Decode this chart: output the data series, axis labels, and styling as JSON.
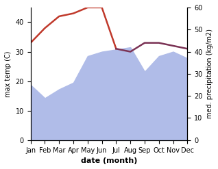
{
  "months": [
    "Jan",
    "Feb",
    "Mar",
    "Apr",
    "May",
    "Jun",
    "Jul",
    "Aug",
    "Sep",
    "Oct",
    "Nov",
    "Dec"
  ],
  "temperature_red": [
    33,
    38,
    42,
    43,
    45,
    45,
    31
  ],
  "temperature_dark": [
    31,
    30,
    33,
    33,
    32,
    31
  ],
  "precipitation": [
    25,
    19,
    23,
    26,
    38,
    40,
    41,
    42,
    31,
    38,
    40,
    37
  ],
  "temp_color_red": "#c0392b",
  "temp_color_dark": "#7b3355",
  "precip_color_fill": "#b0bce8",
  "temp_ylim": [
    0,
    45
  ],
  "precip_ylim": [
    0,
    60
  ],
  "temp_yticks": [
    0,
    10,
    20,
    30,
    40
  ],
  "precip_yticks": [
    0,
    10,
    20,
    30,
    40,
    50,
    60
  ],
  "xlabel": "date (month)",
  "ylabel_left": "max temp (C)",
  "ylabel_right": "med. precipitation (kg/m2)"
}
